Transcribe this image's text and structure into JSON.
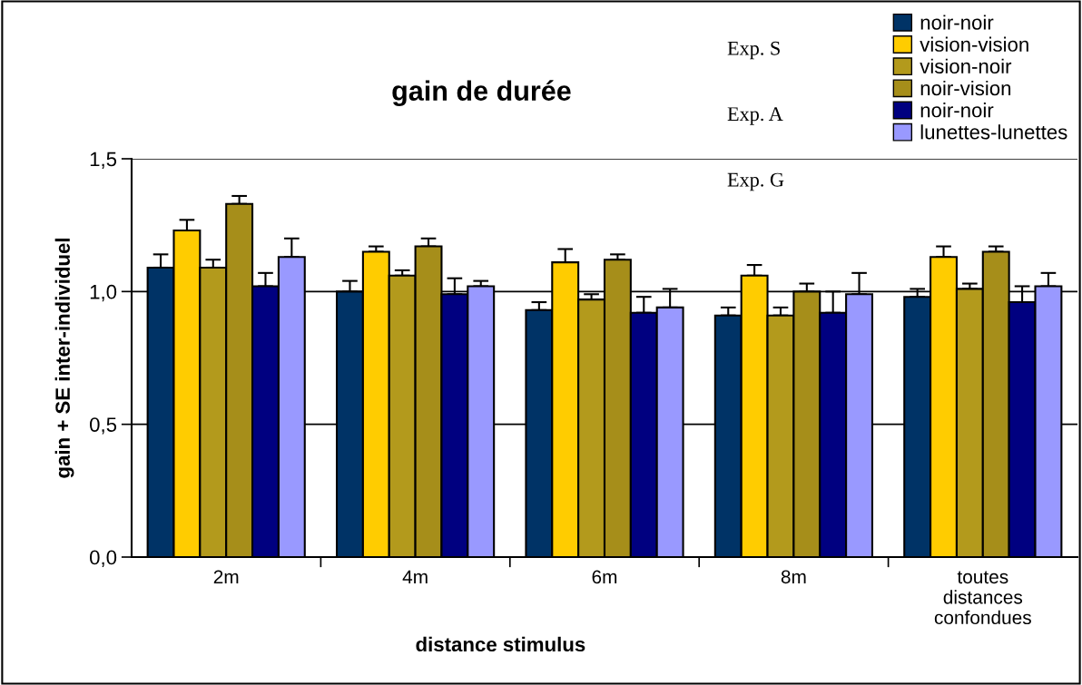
{
  "chart_data": {
    "type": "bar",
    "title": "gain de durée",
    "xlabel": "distance stimulus",
    "ylabel": "gain + SE inter-individuel",
    "categories": [
      "2m",
      "4m",
      "6m",
      "8m",
      "toutes\ndistances\nconfondues"
    ],
    "series": [
      {
        "name": "noir-noir",
        "color": "#003366",
        "values": [
          1.09,
          1.0,
          0.93,
          0.91,
          0.98
        ],
        "errors": [
          [
            1.09,
            1.14
          ],
          [
            1.0,
            1.04
          ],
          [
            0.93,
            0.96
          ],
          [
            0.91,
            0.94
          ],
          [
            0.98,
            1.01
          ]
        ]
      },
      {
        "name": "vision-vision",
        "color": "#ffcc00",
        "values": [
          1.23,
          1.15,
          1.11,
          1.06,
          1.13
        ],
        "errors": [
          [
            1.23,
            1.27
          ],
          [
            1.15,
            1.17
          ],
          [
            1.11,
            1.16
          ],
          [
            1.06,
            1.1
          ],
          [
            1.13,
            1.17
          ]
        ]
      },
      {
        "name": "vision-noir",
        "color": "#b39a1c",
        "values": [
          1.09,
          1.06,
          0.97,
          0.91,
          1.01
        ],
        "errors": [
          [
            1.09,
            1.12
          ],
          [
            1.06,
            1.08
          ],
          [
            0.97,
            0.99
          ],
          [
            0.91,
            0.94
          ],
          [
            1.01,
            1.03
          ]
        ]
      },
      {
        "name": "noir-vision",
        "color": "#a68e1a",
        "values": [
          1.33,
          1.17,
          1.12,
          1.0,
          1.15
        ],
        "errors": [
          [
            1.33,
            1.36
          ],
          [
            1.17,
            1.2
          ],
          [
            1.12,
            1.14
          ],
          [
            1.0,
            1.03
          ],
          [
            1.15,
            1.17
          ]
        ]
      },
      {
        "name": "noir-noir",
        "color": "#000080",
        "values": [
          1.02,
          0.99,
          0.92,
          0.92,
          0.96
        ],
        "errors": [
          [
            1.02,
            1.07
          ],
          [
            0.99,
            1.05
          ],
          [
            0.92,
            0.98
          ],
          [
            0.92,
            1.0
          ],
          [
            0.96,
            1.02
          ]
        ]
      },
      {
        "name": "lunettes-lunettes",
        "color": "#9999ff",
        "values": [
          1.13,
          1.02,
          0.94,
          0.99,
          1.02
        ],
        "errors": [
          [
            1.13,
            1.2
          ],
          [
            1.02,
            1.04
          ],
          [
            0.94,
            1.01
          ],
          [
            0.99,
            1.07
          ],
          [
            1.02,
            1.07
          ]
        ]
      }
    ],
    "annotations": [
      "Exp. S",
      "Exp. A",
      "Exp. G"
    ],
    "ylim": [
      0,
      1.5
    ],
    "yticks": [
      {
        "value": 0,
        "label": "0,0"
      },
      {
        "value": 0.5,
        "label": "0,5"
      },
      {
        "value": 1.0,
        "label": "1,0"
      },
      {
        "value": 1.5,
        "label": "1,5"
      }
    ],
    "grid": "y",
    "legend": "top right"
  }
}
